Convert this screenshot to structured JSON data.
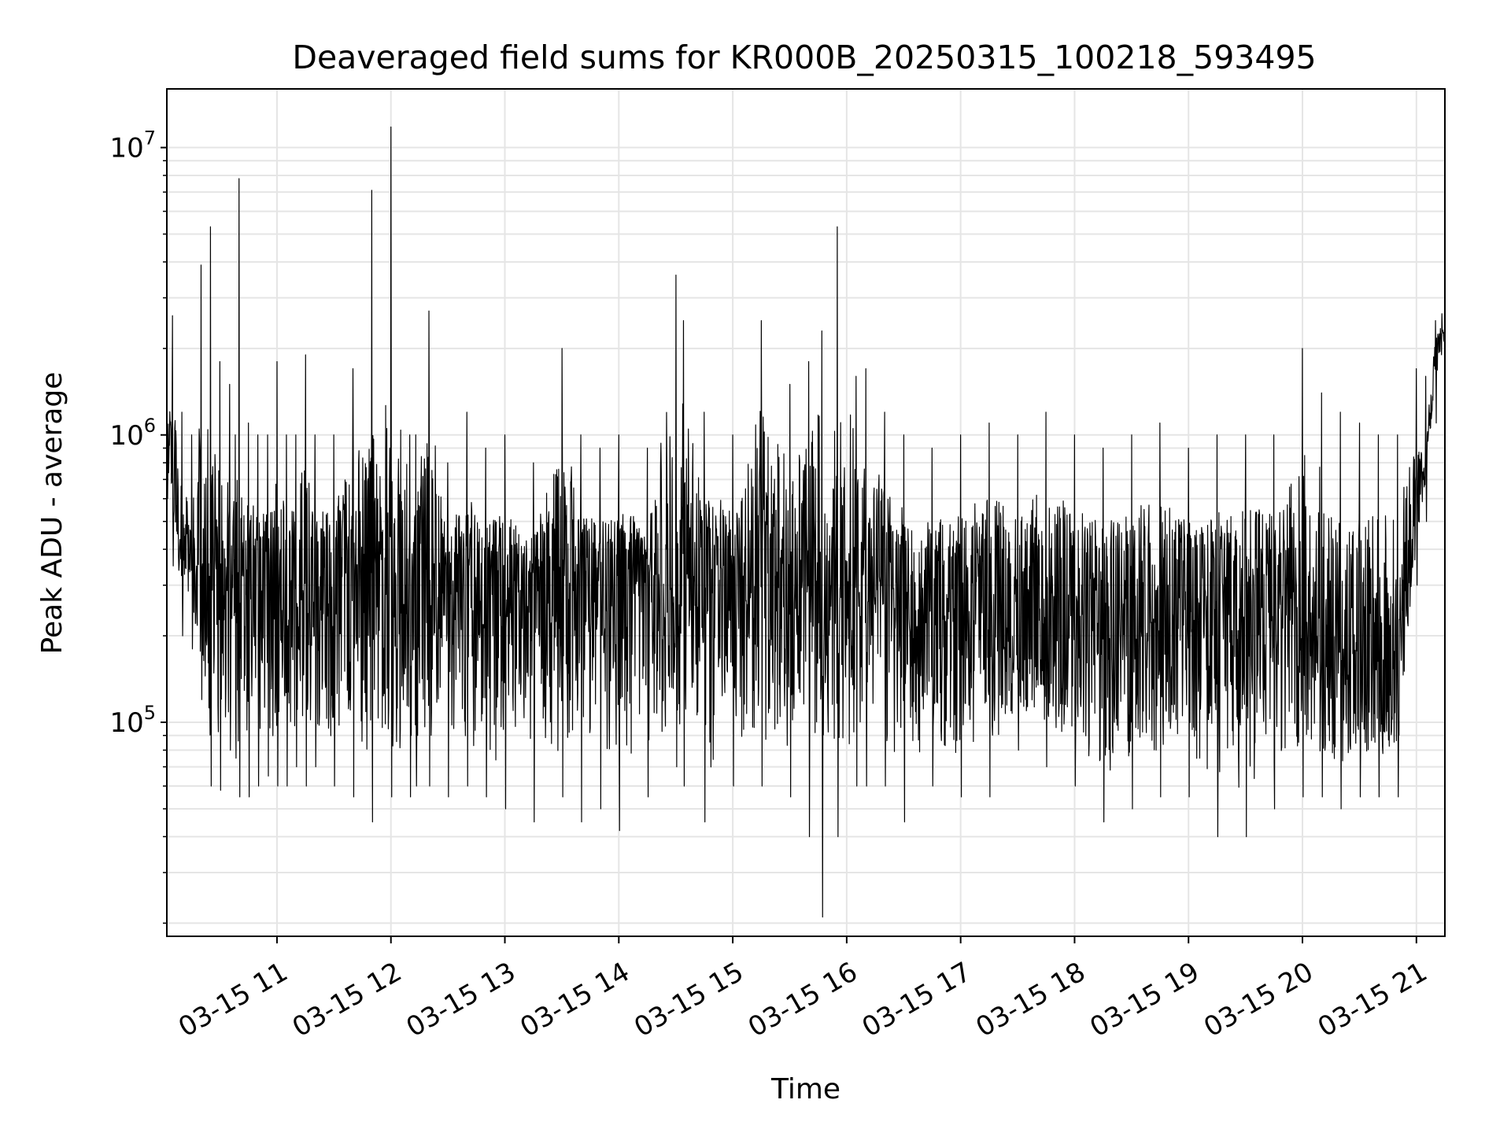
{
  "chart_data": {
    "type": "line",
    "title": "Deaveraged field sums for KR000B_20250315_100218_593495",
    "xlabel": "Time",
    "ylabel": "Peak ADU - average",
    "yscale": "log",
    "grid": true,
    "x_range": [
      "03-15 10:02",
      "03-15 21:15"
    ],
    "ylim": [
      18000,
      16000000
    ],
    "x_ticks": [
      "03-15 11",
      "03-15 12",
      "03-15 13",
      "03-15 14",
      "03-15 15",
      "03-15 16",
      "03-15 17",
      "03-15 18",
      "03-15 19",
      "03-15 20",
      "03-15 21"
    ],
    "y_ticks": [
      {
        "base": "10",
        "exp": "5",
        "value": 100000
      },
      {
        "base": "10",
        "exp": "6",
        "value": 1000000
      },
      {
        "base": "10",
        "exp": "7",
        "value": 10000000
      }
    ],
    "line_color": "#000000",
    "grid_color": "#e5e5e5",
    "series": [
      {
        "x": [
          "03-15 10:02",
          "03-15 10:05",
          "03-15 10:10",
          "03-15 10:15",
          "03-15 10:20",
          "03-15 10:25",
          "03-15 10:30",
          "03-15 10:35",
          "03-15 10:38",
          "03-15 10:40",
          "03-15 10:45",
          "03-15 10:50",
          "03-15 10:55",
          "03-15 11:00",
          "03-15 11:05",
          "03-15 11:10",
          "03-15 11:15",
          "03-15 11:20",
          "03-15 11:30",
          "03-15 11:40",
          "03-15 11:50",
          "03-15 12:00",
          "03-15 12:10",
          "03-15 12:13",
          "03-15 12:20",
          "03-15 12:30",
          "03-15 12:40",
          "03-15 12:50",
          "03-15 13:00",
          "03-15 13:15",
          "03-15 13:30",
          "03-15 13:40",
          "03-15 13:50",
          "03-15 14:00",
          "03-15 14:15",
          "03-15 14:30",
          "03-15 14:34",
          "03-15 14:45",
          "03-15 15:00",
          "03-15 15:15",
          "03-15 15:30",
          "03-15 15:40",
          "03-15 15:47",
          "03-15 15:55",
          "03-15 16:05",
          "03-15 16:10",
          "03-15 16:20",
          "03-15 16:30",
          "03-15 16:45",
          "03-15 17:00",
          "03-15 17:15",
          "03-15 17:30",
          "03-15 17:45",
          "03-15 18:00",
          "03-15 18:15",
          "03-15 18:30",
          "03-15 18:45",
          "03-15 19:00",
          "03-15 19:15",
          "03-15 19:30",
          "03-15 19:45",
          "03-15 20:00",
          "03-15 20:10",
          "03-15 20:20",
          "03-15 20:30",
          "03-15 20:40",
          "03-15 20:50",
          "03-15 21:00",
          "03-15 21:05",
          "03-15 21:10",
          "03-15 21:15"
        ],
        "peaks": [
          1900000,
          2600000,
          1200000,
          1000000,
          3900000,
          5300000,
          1800000,
          1500000,
          1000000,
          7800000,
          1100000,
          1000000,
          1000000,
          1800000,
          1000000,
          1000000,
          1900000,
          1000000,
          1000000,
          1700000,
          7100000,
          11800000,
          1000000,
          1000000,
          2700000,
          800000,
          1200000,
          900000,
          1000000,
          800000,
          2000000,
          1000000,
          900000,
          1000000,
          900000,
          3600000,
          2500000,
          1200000,
          1000000,
          2500000,
          1500000,
          1800000,
          2300000,
          5300000,
          1600000,
          1700000,
          1200000,
          1000000,
          900000,
          1000000,
          1100000,
          1000000,
          1200000,
          1000000,
          900000,
          1000000,
          1100000,
          900000,
          1000000,
          1000000,
          1000000,
          2000000,
          1400000,
          1200000,
          1100000,
          1000000,
          1000000,
          1700000,
          1600000,
          2500000,
          2800000
        ],
        "troughs": [
          600000,
          350000,
          200000,
          180000,
          120000,
          60000,
          58000,
          80000,
          75000,
          55000,
          55000,
          60000,
          65000,
          60000,
          60000,
          70000,
          60000,
          70000,
          60000,
          55000,
          45000,
          55000,
          55000,
          60000,
          60000,
          55000,
          60000,
          55000,
          50000,
          45000,
          55000,
          45000,
          50000,
          42000,
          55000,
          70000,
          60000,
          45000,
          60000,
          60000,
          55000,
          40000,
          21000,
          40000,
          60000,
          60000,
          60000,
          45000,
          60000,
          55000,
          55000,
          80000,
          70000,
          60000,
          45000,
          50000,
          55000,
          55000,
          40000,
          40000,
          50000,
          55000,
          55000,
          50000,
          55000,
          55000,
          55000,
          300000,
          500000,
          1100000,
          1500000
        ],
        "centers": [
          1500000,
          800000,
          400000,
          350000,
          300000,
          280000,
          270000,
          300000,
          280000,
          320000,
          300000,
          300000,
          300000,
          300000,
          300000,
          310000,
          300000,
          320000,
          320000,
          300000,
          320000,
          340000,
          320000,
          300000,
          330000,
          320000,
          300000,
          300000,
          300000,
          300000,
          290000,
          300000,
          300000,
          300000,
          300000,
          320000,
          320000,
          300000,
          300000,
          320000,
          300000,
          280000,
          260000,
          320000,
          350000,
          350000,
          300000,
          280000,
          280000,
          260000,
          250000,
          250000,
          260000,
          260000,
          250000,
          260000,
          250000,
          240000,
          240000,
          250000,
          240000,
          220000,
          200000,
          180000,
          160000,
          150000,
          150000,
          400000,
          900000,
          1500000,
          2000000
        ]
      }
    ]
  }
}
